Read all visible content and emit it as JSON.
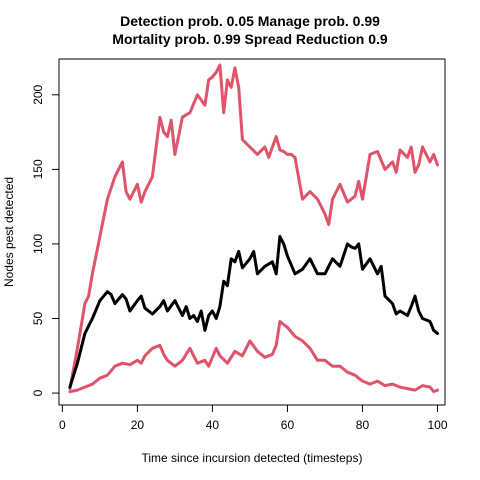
{
  "chart_data": {
    "type": "line",
    "title_line1": "Detection prob. 0.05 Manage prob. 0.99",
    "title_line2": "Mortality prob. 0.99 Spread Reduction 0.9",
    "xlabel": "Time since incursion detected (timesteps)",
    "ylabel": "Nodes pest detected",
    "xlim": [
      -0.9,
      102
    ],
    "ylim": [
      -8,
      224
    ],
    "x_ticks": [
      0,
      20,
      40,
      60,
      80,
      100
    ],
    "y_ticks": [
      0,
      50,
      100,
      150,
      200
    ],
    "grid": false,
    "colors": {
      "mean": "#000000",
      "bounds": "#df536b"
    },
    "series": [
      {
        "role": "upper",
        "color": "#df536b",
        "x": [
          2,
          4,
          6,
          7,
          8,
          10,
          12,
          14,
          16,
          17,
          18,
          20,
          21,
          22,
          24,
          26,
          27,
          28,
          29,
          30,
          32,
          34,
          36,
          38,
          39,
          40,
          41,
          42,
          43,
          44,
          45,
          46,
          47,
          48,
          50,
          52,
          54,
          55,
          56,
          57,
          58,
          59,
          60,
          61,
          62,
          64,
          66,
          68,
          70,
          71,
          72,
          74,
          76,
          78,
          79,
          80,
          82,
          84,
          86,
          88,
          89,
          90,
          92,
          93,
          94,
          95,
          96,
          98,
          99,
          100
        ],
        "y": [
          3,
          30,
          60,
          65,
          80,
          105,
          130,
          145,
          155,
          135,
          130,
          140,
          128,
          135,
          145,
          185,
          175,
          172,
          183,
          160,
          185,
          188,
          200,
          193,
          210,
          212,
          215,
          220,
          188,
          210,
          205,
          218,
          205,
          170,
          165,
          160,
          165,
          158,
          165,
          172,
          163,
          162,
          160,
          160,
          158,
          130,
          135,
          130,
          120,
          113,
          130,
          140,
          128,
          132,
          142,
          130,
          160,
          162,
          150,
          155,
          148,
          163,
          158,
          165,
          148,
          153,
          165,
          155,
          160,
          153
        ]
      },
      {
        "role": "mean",
        "color": "#000000",
        "x": [
          2,
          4,
          6,
          7,
          8,
          10,
          12,
          13,
          14,
          16,
          17,
          18,
          20,
          21,
          22,
          24,
          26,
          27,
          28,
          30,
          32,
          33,
          34,
          35,
          36,
          37,
          38,
          39,
          40,
          41,
          42,
          43,
          44,
          45,
          46,
          47,
          48,
          50,
          51,
          52,
          54,
          56,
          57,
          58,
          59,
          60,
          62,
          64,
          66,
          68,
          70,
          72,
          74,
          76,
          77,
          78,
          79,
          80,
          82,
          84,
          85,
          86,
          88,
          89,
          90,
          92,
          93,
          94,
          95,
          96,
          98,
          99,
          100
        ],
        "y": [
          4,
          20,
          40,
          45,
          50,
          62,
          68,
          66,
          60,
          66,
          63,
          55,
          62,
          65,
          57,
          53,
          58,
          62,
          55,
          62,
          52,
          58,
          50,
          52,
          48,
          55,
          42,
          52,
          55,
          50,
          58,
          75,
          72,
          90,
          88,
          95,
          84,
          90,
          95,
          80,
          85,
          88,
          80,
          105,
          100,
          92,
          80,
          83,
          90,
          80,
          80,
          90,
          85,
          100,
          98,
          97,
          100,
          83,
          90,
          80,
          85,
          65,
          60,
          53,
          55,
          52,
          58,
          65,
          55,
          50,
          48,
          42,
          40
        ]
      },
      {
        "role": "lower",
        "color": "#df536b",
        "x": [
          2,
          4,
          6,
          8,
          10,
          12,
          14,
          16,
          18,
          20,
          21,
          22,
          24,
          26,
          27,
          28,
          30,
          32,
          34,
          36,
          38,
          39,
          40,
          41,
          42,
          44,
          46,
          48,
          50,
          52,
          54,
          56,
          57,
          58,
          60,
          62,
          64,
          66,
          68,
          70,
          72,
          74,
          76,
          78,
          79,
          80,
          82,
          84,
          86,
          88,
          90,
          92,
          94,
          96,
          98,
          99,
          100
        ],
        "y": [
          1,
          2,
          4,
          6,
          10,
          12,
          18,
          20,
          19,
          22,
          20,
          25,
          30,
          32,
          26,
          22,
          18,
          22,
          30,
          20,
          22,
          18,
          24,
          30,
          25,
          20,
          28,
          25,
          35,
          28,
          24,
          26,
          32,
          48,
          44,
          38,
          35,
          30,
          22,
          22,
          18,
          18,
          14,
          12,
          10,
          8,
          6,
          8,
          5,
          6,
          4,
          3,
          2,
          5,
          4,
          1,
          2
        ]
      }
    ]
  }
}
